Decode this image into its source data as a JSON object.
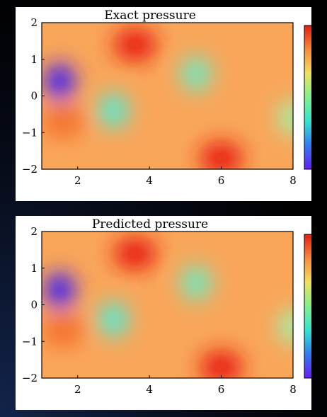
{
  "chart_data": [
    {
      "type": "heatmap",
      "title": "Exact pressure",
      "xlabel": "",
      "ylabel": "",
      "xlim": [
        1,
        8
      ],
      "ylim": [
        -2,
        2
      ],
      "x_ticks": [
        "2",
        "4",
        "6",
        "8"
      ],
      "y_ticks": [
        "2",
        "1",
        "0",
        "−1",
        "−2"
      ],
      "colormap": "rainbow",
      "colorbar": true,
      "field_features": [
        {
          "kind": "minimum",
          "x": 1.5,
          "y": 0.4,
          "color": "#3d1ff5"
        },
        {
          "kind": "minimum",
          "x": 3.0,
          "y": -0.4,
          "color": "#58e8d0"
        },
        {
          "kind": "minimum",
          "x": 5.3,
          "y": 0.6,
          "color": "#6ee9bf"
        },
        {
          "kind": "minimum",
          "x": 8.0,
          "y": -0.6,
          "color": "#a6eea6"
        },
        {
          "kind": "maximum",
          "x": 3.6,
          "y": 1.4,
          "color": "#e81a0d"
        },
        {
          "kind": "maximum",
          "x": 6.0,
          "y": -1.7,
          "color": "#e81a0d"
        },
        {
          "kind": "maximum",
          "x": 1.6,
          "y": -0.7,
          "color": "#f4702e"
        }
      ]
    },
    {
      "type": "heatmap",
      "title": "Predicted pressure",
      "xlabel": "",
      "ylabel": "",
      "xlim": [
        1,
        8
      ],
      "ylim": [
        -2,
        2
      ],
      "x_ticks": [
        "2",
        "4",
        "6",
        "8"
      ],
      "y_ticks": [
        "2",
        "1",
        "0",
        "−1",
        "−2"
      ],
      "colormap": "rainbow",
      "colorbar": true,
      "field_features": [
        {
          "kind": "minimum",
          "x": 1.5,
          "y": 0.4,
          "color": "#3d1ff5"
        },
        {
          "kind": "minimum",
          "x": 3.0,
          "y": -0.4,
          "color": "#58e8d0"
        },
        {
          "kind": "minimum",
          "x": 5.3,
          "y": 0.6,
          "color": "#6ee9bf"
        },
        {
          "kind": "minimum",
          "x": 8.0,
          "y": -0.6,
          "color": "#a6eea6"
        },
        {
          "kind": "maximum",
          "x": 3.6,
          "y": 1.4,
          "color": "#e81a0d"
        },
        {
          "kind": "maximum",
          "x": 6.0,
          "y": -1.7,
          "color": "#e81a0d"
        },
        {
          "kind": "maximum",
          "x": 1.6,
          "y": -0.7,
          "color": "#f4702e"
        }
      ]
    }
  ],
  "colors": {
    "background_field": "#f9a65a",
    "colorbar_stops": [
      "#6a1bf5",
      "#2f7cf6",
      "#2fe6d2",
      "#7ef28a",
      "#f1e15a",
      "#fb8a3a",
      "#e81a0d"
    ]
  }
}
